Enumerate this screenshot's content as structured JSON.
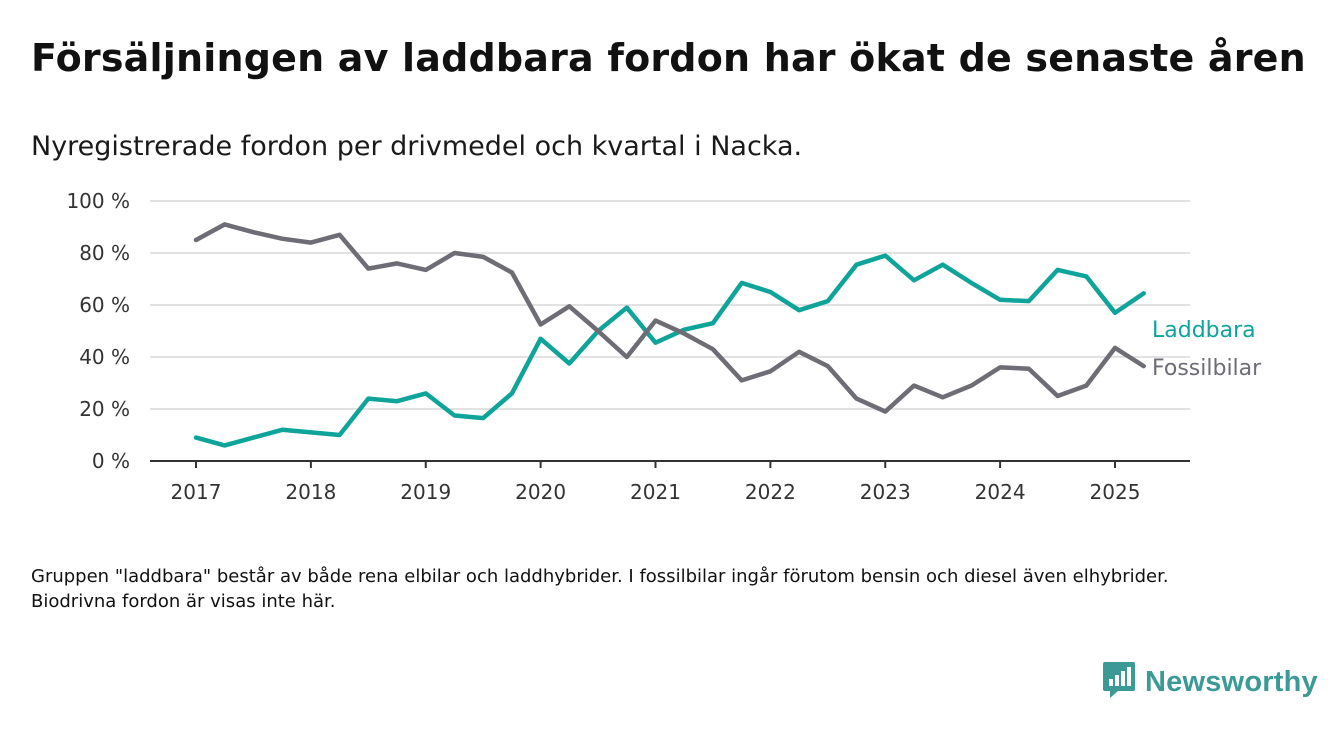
{
  "header": {
    "title": "Försäljningen av laddbara fordon har ökat de senaste åren",
    "subtitle": "Nyregistrerade fordon per drivmedel och kvartal i Nacka."
  },
  "chart_data": {
    "type": "line",
    "x": [
      2017.0,
      2017.25,
      2017.5,
      2017.75,
      2018.0,
      2018.25,
      2018.5,
      2018.75,
      2019.0,
      2019.25,
      2019.5,
      2019.75,
      2020.0,
      2020.25,
      2020.5,
      2020.75,
      2021.0,
      2021.25,
      2021.5,
      2021.75,
      2022.0,
      2022.25,
      2022.5,
      2022.75,
      2023.0,
      2023.25,
      2023.5,
      2023.75,
      2024.0,
      2024.25,
      2024.5,
      2024.75,
      2025.0,
      2025.25
    ],
    "x_ticks": [
      "2017",
      "2018",
      "2019",
      "2020",
      "2021",
      "2022",
      "2023",
      "2024",
      "2025"
    ],
    "y_ticks": [
      "0 %",
      "20 %",
      "40 %",
      "60 %",
      "80 %",
      "100 %"
    ],
    "ylim": [
      0,
      100
    ],
    "grid": "horizontal",
    "series": [
      {
        "name": "Laddbara",
        "color": "#0ea49a",
        "values": [
          9,
          6,
          9,
          12,
          11,
          10,
          24,
          23,
          26,
          17.5,
          16.5,
          26,
          47,
          37.5,
          50,
          59,
          45.5,
          50.5,
          53,
          68.5,
          65,
          58,
          61.5,
          75.5,
          79,
          69.5,
          75.5,
          68.5,
          62,
          61.5,
          73.5,
          71,
          57,
          64.5
        ]
      },
      {
        "name": "Fossilbilar",
        "color": "#6e6c74",
        "values": [
          85,
          91,
          88,
          85.5,
          84,
          87,
          74,
          76,
          73.5,
          80,
          78.5,
          72.5,
          52.5,
          59.5,
          50,
          40,
          54,
          49,
          43,
          31,
          34.5,
          42,
          36.5,
          24,
          19,
          29,
          24.5,
          29,
          36,
          35.5,
          25,
          29,
          43.5,
          36.5
        ]
      }
    ]
  },
  "footer": {
    "note": "Gruppen \"laddbara\" består av både rena elbilar och laddhybrider. I fossilbilar ingår förutom bensin och diesel även elhybrider. Biodrivna fordon är visas inte här.",
    "brand": "Newsworthy",
    "brand_color": "#3b9a96"
  }
}
